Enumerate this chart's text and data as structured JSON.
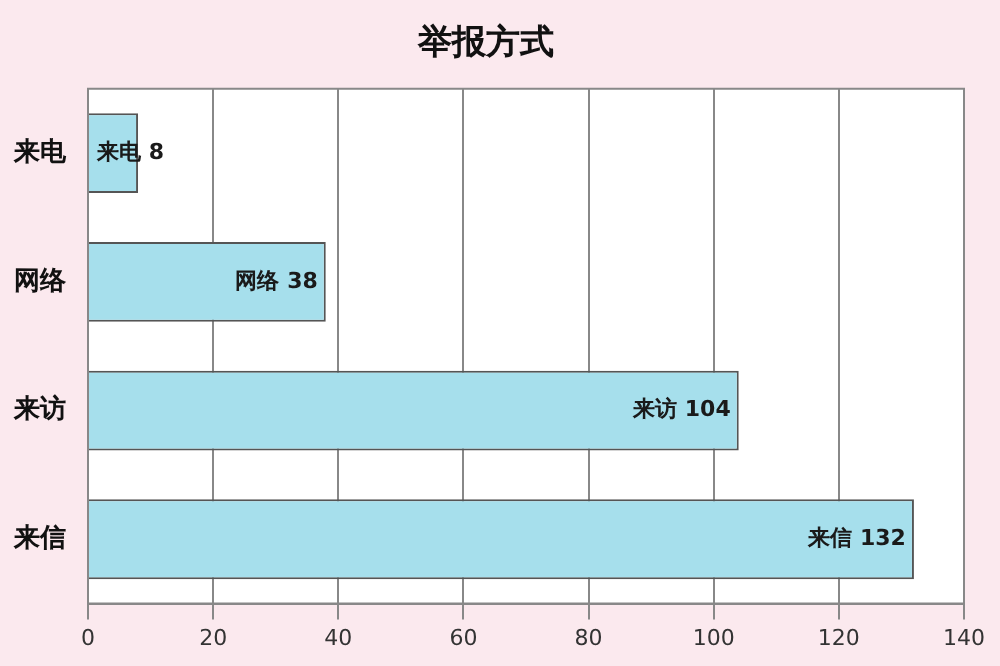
{
  "chart_data": {
    "type": "bar",
    "orientation": "horizontal",
    "title": "举报方式",
    "categories": [
      "来电",
      "网络",
      "来访",
      "来信"
    ],
    "values": [
      8,
      38,
      104,
      132
    ],
    "value_labels": [
      "来电 8",
      "网络 38",
      "来访 104",
      "来信 132"
    ],
    "color": "#a6dfec",
    "xlim": [
      0,
      140
    ],
    "xticks": [
      0,
      20,
      40,
      60,
      80,
      100,
      120,
      140
    ],
    "grid": "x",
    "legend": false
  }
}
